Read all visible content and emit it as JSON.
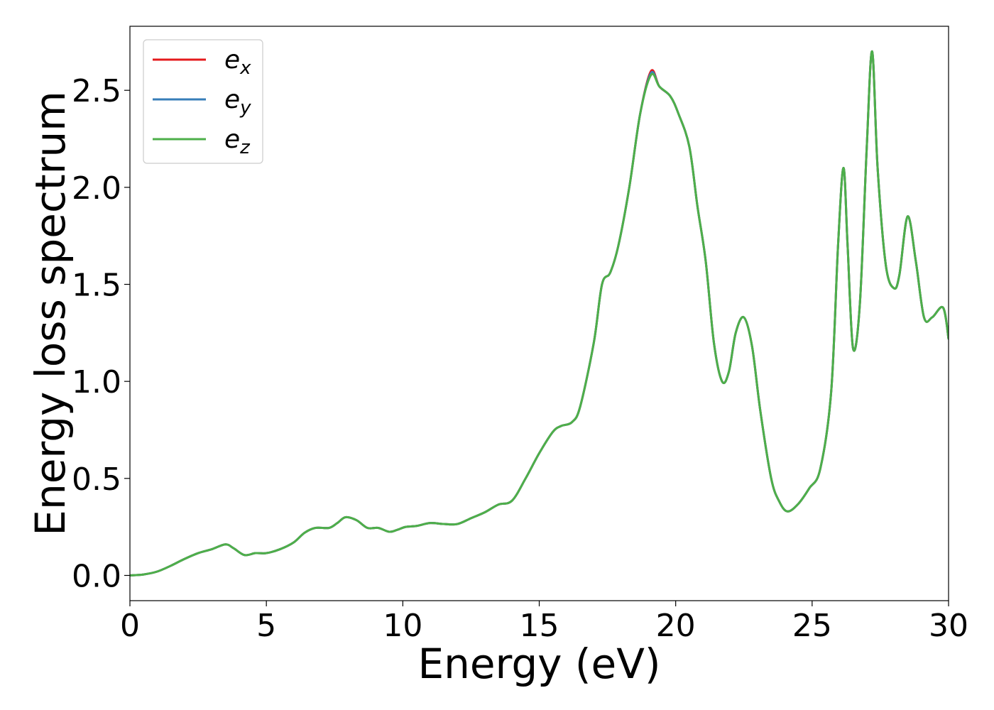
{
  "chart_data": {
    "type": "line",
    "title": "",
    "xlabel": "Energy (eV)",
    "ylabel": "Energy loss spectrum",
    "xlim": [
      0,
      30
    ],
    "ylim": [
      -0.13,
      2.83
    ],
    "xticks": [
      0,
      5,
      10,
      15,
      20,
      25,
      30
    ],
    "xtick_labels": [
      "0",
      "5",
      "10",
      "15",
      "20",
      "25",
      "30"
    ],
    "yticks": [
      0.0,
      0.5,
      1.0,
      1.5,
      2.0,
      2.5
    ],
    "ytick_labels": [
      "0.0",
      "0.5",
      "1.0",
      "1.5",
      "2.0",
      "2.5"
    ],
    "grid": false,
    "legend": {
      "placement": "top-left"
    },
    "series": [
      {
        "name": "e",
        "subscript": "x",
        "color": "#e41a1c",
        "x": [
          0,
          0.5,
          1,
          1.5,
          2,
          2.5,
          3,
          3.5,
          3.8,
          4.2,
          4.6,
          5,
          5.5,
          6,
          6.4,
          6.8,
          7.3,
          7.6,
          7.9,
          8.3,
          8.7,
          9.1,
          9.5,
          9.8,
          10.1,
          10.5,
          11,
          11.5,
          12,
          12.5,
          13,
          13.5,
          14,
          14.5,
          15,
          15.5,
          15.8,
          16.2,
          16.5,
          17,
          17.3,
          17.6,
          17.9,
          18.3,
          18.7,
          19.1,
          19.4,
          19.8,
          20.1,
          20.5,
          20.8,
          21.1,
          21.4,
          21.7,
          21.95,
          22.2,
          22.5,
          22.8,
          23.1,
          23.5,
          23.8,
          24.1,
          24.5,
          24.9,
          25.3,
          25.7,
          25.95,
          26.15,
          26.3,
          26.5,
          26.75,
          27,
          27.2,
          27.4,
          27.7,
          28,
          28.2,
          28.5,
          28.8,
          29.1,
          29.4,
          29.8,
          30
        ],
        "y": [
          0.0,
          0.005,
          0.02,
          0.05,
          0.085,
          0.115,
          0.135,
          0.16,
          0.14,
          0.105,
          0.115,
          0.115,
          0.135,
          0.17,
          0.22,
          0.245,
          0.245,
          0.27,
          0.3,
          0.285,
          0.245,
          0.245,
          0.225,
          0.235,
          0.25,
          0.255,
          0.27,
          0.265,
          0.265,
          0.295,
          0.325,
          0.365,
          0.385,
          0.5,
          0.63,
          0.74,
          0.77,
          0.79,
          0.87,
          1.2,
          1.5,
          1.56,
          1.7,
          2.0,
          2.38,
          2.6,
          2.52,
          2.47,
          2.38,
          2.21,
          1.9,
          1.62,
          1.2,
          1.0,
          1.05,
          1.25,
          1.33,
          1.18,
          0.85,
          0.5,
          0.38,
          0.33,
          0.37,
          0.45,
          0.55,
          0.95,
          1.7,
          2.1,
          1.7,
          1.17,
          1.4,
          2.2,
          2.7,
          2.1,
          1.6,
          1.48,
          1.55,
          1.85,
          1.62,
          1.33,
          1.33,
          1.38,
          1.22
        ]
      },
      {
        "name": "e",
        "subscript": "y",
        "color": "#377eb8",
        "x": [
          0,
          0.5,
          1,
          1.5,
          2,
          2.5,
          3,
          3.5,
          3.8,
          4.2,
          4.6,
          5,
          5.5,
          6,
          6.4,
          6.8,
          7.3,
          7.6,
          7.9,
          8.3,
          8.7,
          9.1,
          9.5,
          9.8,
          10.1,
          10.5,
          11,
          11.5,
          12,
          12.5,
          13,
          13.5,
          14,
          14.5,
          15,
          15.5,
          15.8,
          16.2,
          16.5,
          17,
          17.3,
          17.6,
          17.9,
          18.3,
          18.7,
          19.1,
          19.4,
          19.8,
          20.1,
          20.5,
          20.8,
          21.1,
          21.4,
          21.7,
          21.95,
          22.2,
          22.5,
          22.8,
          23.1,
          23.5,
          23.8,
          24.1,
          24.5,
          24.9,
          25.3,
          25.7,
          25.95,
          26.15,
          26.3,
          26.5,
          26.75,
          27,
          27.2,
          27.4,
          27.7,
          28,
          28.2,
          28.5,
          28.8,
          29.1,
          29.4,
          29.8,
          30
        ],
        "y": [
          0.0,
          0.005,
          0.02,
          0.05,
          0.085,
          0.115,
          0.135,
          0.16,
          0.14,
          0.105,
          0.115,
          0.115,
          0.135,
          0.17,
          0.22,
          0.245,
          0.245,
          0.27,
          0.3,
          0.285,
          0.245,
          0.245,
          0.225,
          0.235,
          0.25,
          0.255,
          0.27,
          0.265,
          0.265,
          0.295,
          0.325,
          0.365,
          0.385,
          0.5,
          0.63,
          0.74,
          0.77,
          0.79,
          0.87,
          1.2,
          1.5,
          1.56,
          1.7,
          2.0,
          2.38,
          2.59,
          2.52,
          2.47,
          2.38,
          2.21,
          1.9,
          1.62,
          1.2,
          1.0,
          1.05,
          1.25,
          1.33,
          1.18,
          0.85,
          0.5,
          0.38,
          0.33,
          0.37,
          0.45,
          0.55,
          0.95,
          1.7,
          2.1,
          1.7,
          1.17,
          1.4,
          2.2,
          2.7,
          2.1,
          1.6,
          1.48,
          1.55,
          1.85,
          1.62,
          1.33,
          1.33,
          1.38,
          1.22
        ]
      },
      {
        "name": "e",
        "subscript": "z",
        "color": "#4daf4a",
        "x": [
          0,
          0.5,
          1,
          1.5,
          2,
          2.5,
          3,
          3.5,
          3.8,
          4.2,
          4.6,
          5,
          5.5,
          6,
          6.4,
          6.8,
          7.3,
          7.6,
          7.9,
          8.3,
          8.7,
          9.1,
          9.5,
          9.8,
          10.1,
          10.5,
          11,
          11.5,
          12,
          12.5,
          13,
          13.5,
          14,
          14.5,
          15,
          15.5,
          15.8,
          16.2,
          16.5,
          17,
          17.3,
          17.6,
          17.9,
          18.3,
          18.7,
          19.1,
          19.4,
          19.8,
          20.1,
          20.5,
          20.8,
          21.1,
          21.4,
          21.7,
          21.95,
          22.2,
          22.5,
          22.8,
          23.1,
          23.5,
          23.8,
          24.1,
          24.5,
          24.9,
          25.3,
          25.7,
          25.95,
          26.15,
          26.3,
          26.5,
          26.75,
          27,
          27.2,
          27.4,
          27.7,
          28,
          28.2,
          28.5,
          28.8,
          29.1,
          29.4,
          29.8,
          30
        ],
        "y": [
          0.0,
          0.005,
          0.02,
          0.05,
          0.085,
          0.115,
          0.135,
          0.16,
          0.14,
          0.105,
          0.115,
          0.115,
          0.135,
          0.17,
          0.22,
          0.245,
          0.245,
          0.27,
          0.3,
          0.285,
          0.245,
          0.245,
          0.225,
          0.235,
          0.25,
          0.255,
          0.27,
          0.265,
          0.265,
          0.295,
          0.325,
          0.365,
          0.385,
          0.5,
          0.63,
          0.74,
          0.77,
          0.79,
          0.87,
          1.2,
          1.5,
          1.56,
          1.7,
          2.0,
          2.38,
          2.58,
          2.52,
          2.47,
          2.38,
          2.21,
          1.9,
          1.62,
          1.2,
          1.0,
          1.05,
          1.25,
          1.33,
          1.18,
          0.85,
          0.5,
          0.38,
          0.33,
          0.37,
          0.45,
          0.55,
          0.95,
          1.7,
          2.1,
          1.7,
          1.17,
          1.4,
          2.2,
          2.7,
          2.1,
          1.6,
          1.48,
          1.55,
          1.85,
          1.62,
          1.33,
          1.33,
          1.38,
          1.22
        ]
      }
    ]
  }
}
